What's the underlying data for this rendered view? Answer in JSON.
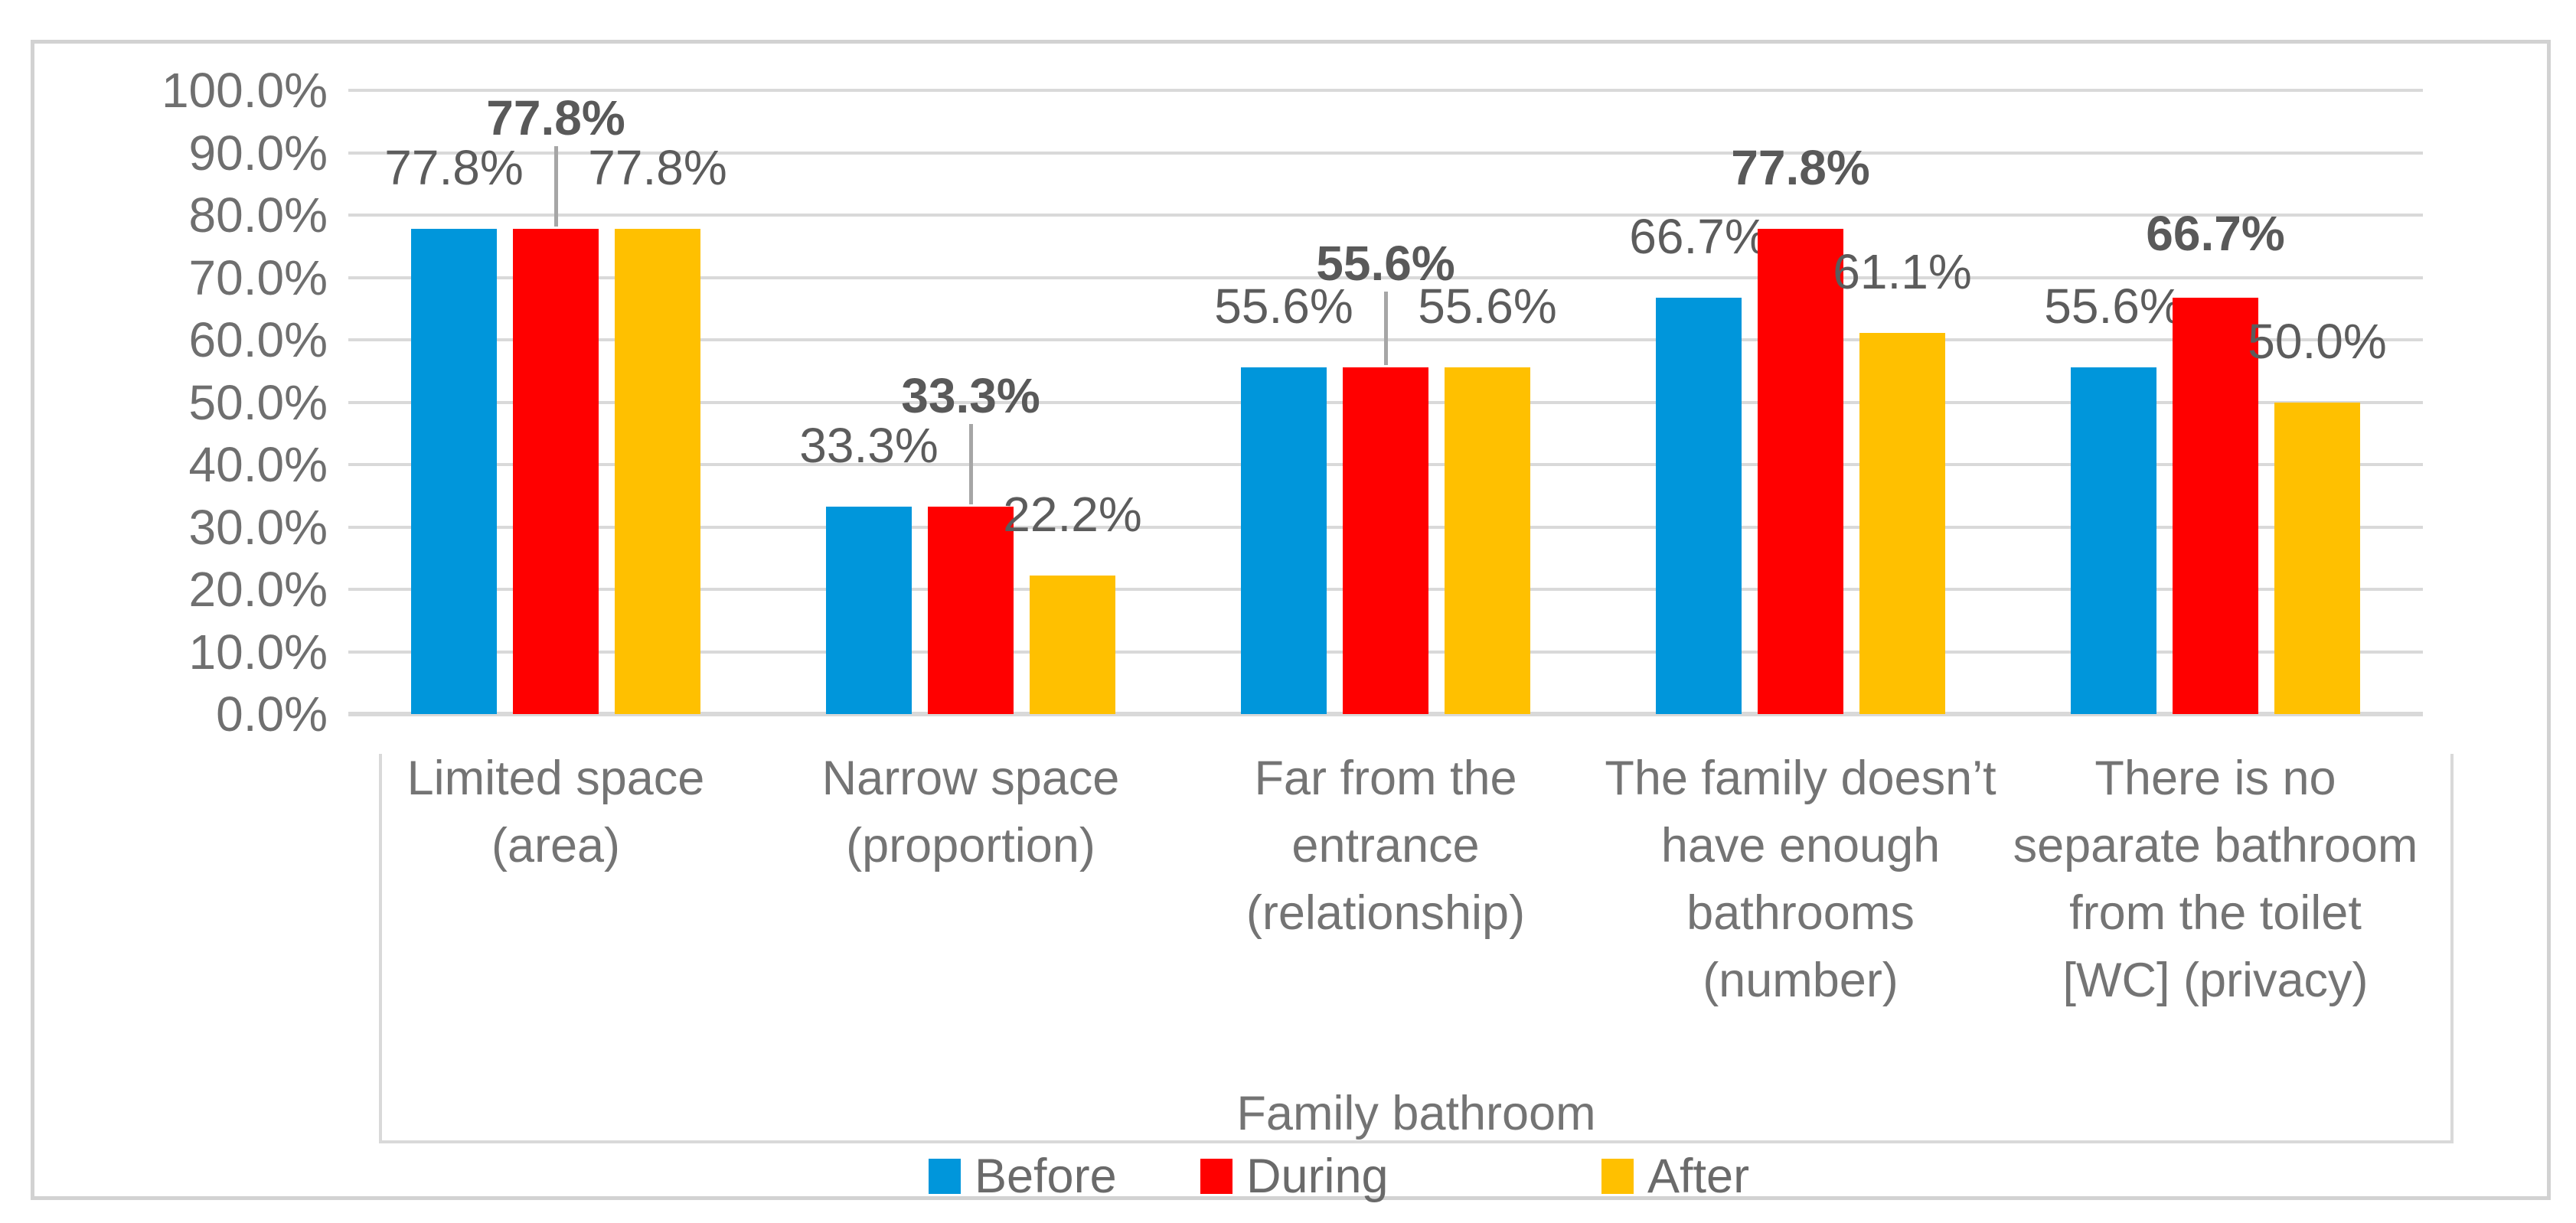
{
  "chart_data": {
    "type": "bar",
    "categories": [
      {
        "lines": [
          "Limited space",
          "(area)"
        ]
      },
      {
        "lines": [
          "Narrow space",
          "(proportion)"
        ]
      },
      {
        "lines": [
          "Far from the",
          "entrance",
          "(relationship)"
        ]
      },
      {
        "lines": [
          "The family doesn’t",
          "have enough",
          "bathrooms",
          "(number)"
        ]
      },
      {
        "lines": [
          "There is no",
          "separate bathroom",
          "from the toilet",
          "[WC] (privacy)"
        ]
      }
    ],
    "series": [
      {
        "name": "Before",
        "color": "#0096DB",
        "values": [
          77.8,
          33.3,
          55.6,
          66.7,
          55.6
        ]
      },
      {
        "name": "During",
        "color": "#FF0000",
        "values": [
          77.8,
          33.3,
          55.6,
          77.8,
          66.7
        ],
        "emphasized_labels": true
      },
      {
        "name": "After",
        "color": "#FFC000",
        "values": [
          77.8,
          22.2,
          55.6,
          61.1,
          50.0
        ]
      }
    ],
    "xlabel": "Family bathroom",
    "ylim": [
      0,
      100
    ],
    "y_ticks": [
      "100.0%",
      "90.0%",
      "80.0%",
      "70.0%",
      "60.0%",
      "50.0%",
      "40.0%",
      "30.0%",
      "20.0%",
      "10.0%",
      "0.0%"
    ],
    "grid": true,
    "legend_position": "bottom",
    "data_label_format": "percent-one-decimal"
  },
  "colors": {
    "grid": "#D9D9D9",
    "frame": "#D2D2D2",
    "axis_text": "#6F6F6F",
    "category_text": "#747474",
    "data_label_text": "#5C5C5C",
    "leader_line": "#A6A6A6",
    "background": "#FFFFFF"
  }
}
